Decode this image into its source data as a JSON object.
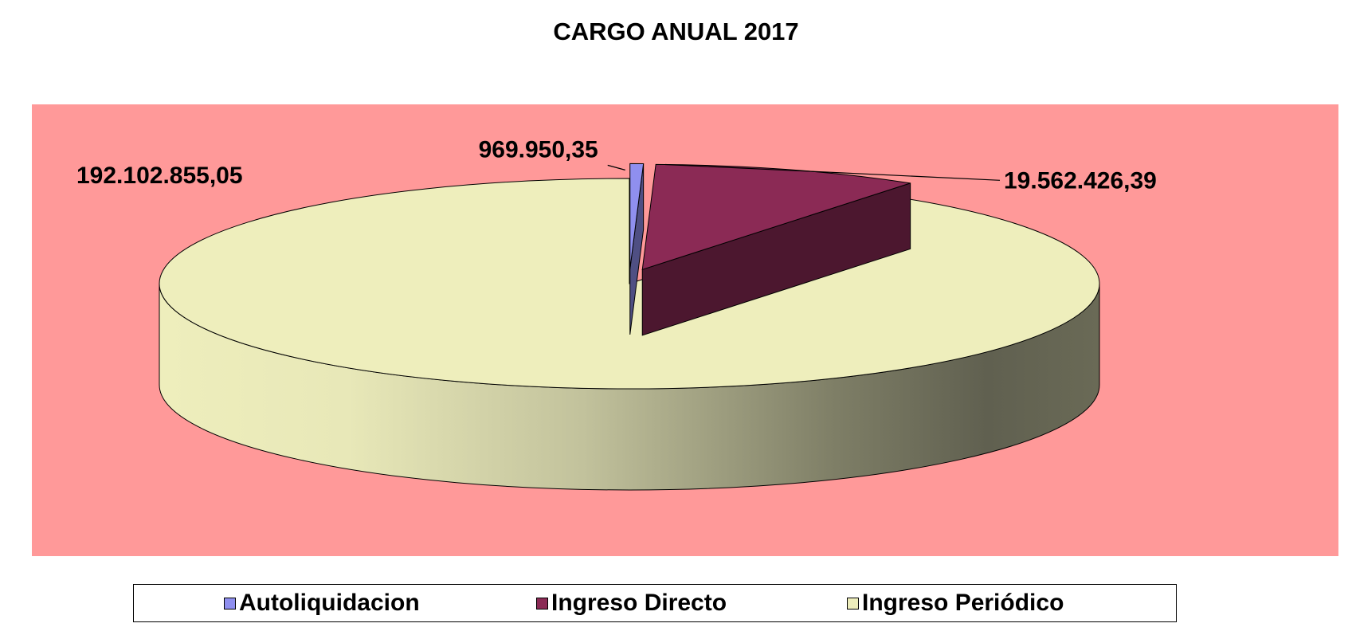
{
  "chart_data": {
    "type": "pie",
    "title": "CARGO ANUAL 2017",
    "categories": [
      "Autoliquidacion",
      "Ingreso Directo",
      "Ingreso Periódico"
    ],
    "values": [
      969950.35,
      19562426.39,
      192102855.05
    ],
    "data_labels": [
      "969.950,35",
      "19.562.426,39",
      "192.102.855,05"
    ],
    "colors": [
      "#8f8fef",
      "#8b2a55",
      "#eeeebc"
    ],
    "plot_background": "#ff9999",
    "three_d": true,
    "exploded": true,
    "legend": "bottom"
  }
}
